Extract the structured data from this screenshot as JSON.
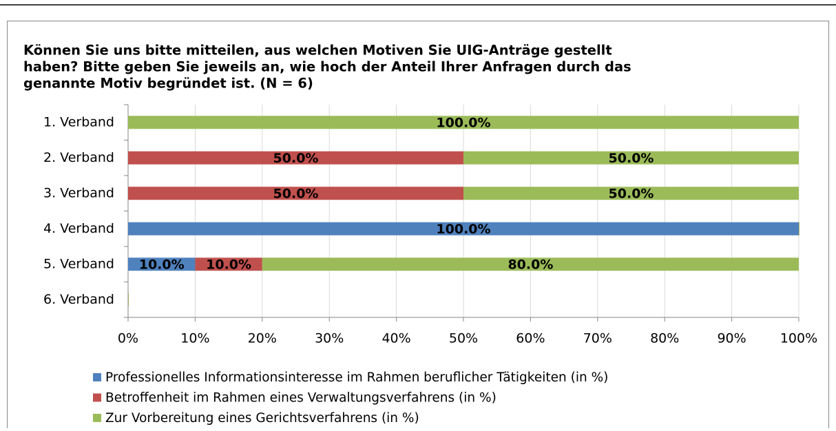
{
  "chart_data": {
    "type": "stacked-bar-horizontal",
    "title": [
      "Können Sie uns bitte mitteilen, aus welchen Motiven Sie UIG-Anträge gestellt",
      "haben? Bitte geben Sie jeweils an, wie hoch der Anteil Ihrer Anfragen durch das",
      "genannte Motiv begründet ist. (N = 6)"
    ],
    "categories": [
      "1. Verband",
      "2. Verband",
      "3. Verband",
      "4. Verband",
      "5. Verband",
      "6. Verband"
    ],
    "series": [
      {
        "name": "Professionelles Informationsinteresse im Rahmen beruflicher Tätigkeiten (in %)",
        "color": "#4f81bd",
        "values": [
          0,
          0,
          0,
          100,
          10,
          0
        ],
        "value_labels": [
          null,
          null,
          null,
          "100.0%",
          "10.0%",
          null
        ]
      },
      {
        "name": "Betroffenheit im Rahmen eines Verwaltungsverfahrens (in %)",
        "color": "#c0504d",
        "values": [
          0,
          50,
          50,
          0,
          10,
          0
        ],
        "value_labels": [
          null,
          "50.0%",
          "50.0%",
          null,
          "10.0%",
          null
        ]
      },
      {
        "name": "Zur Vorbereitung eines Gerichtsverfahrens (in %)",
        "color": "#9bbb59",
        "values": [
          100,
          50,
          50,
          0,
          80,
          0
        ],
        "value_labels": [
          "100.0%",
          "50.0%",
          "50.0%",
          null,
          "80.0%",
          null
        ]
      }
    ],
    "xlim": [
      0,
      100
    ],
    "xticks": [
      {
        "value": 0,
        "label": "0%"
      },
      {
        "value": 10,
        "label": "10%"
      },
      {
        "value": 20,
        "label": "20%"
      },
      {
        "value": 30,
        "label": "30%"
      },
      {
        "value": 40,
        "label": "40%"
      },
      {
        "value": 50,
        "label": "50%"
      },
      {
        "value": 60,
        "label": "60%"
      },
      {
        "value": 70,
        "label": "70%"
      },
      {
        "value": 80,
        "label": "80%"
      },
      {
        "value": 90,
        "label": "90%"
      },
      {
        "value": 100,
        "label": "100%"
      }
    ],
    "grid": true,
    "legend": "bottom"
  }
}
